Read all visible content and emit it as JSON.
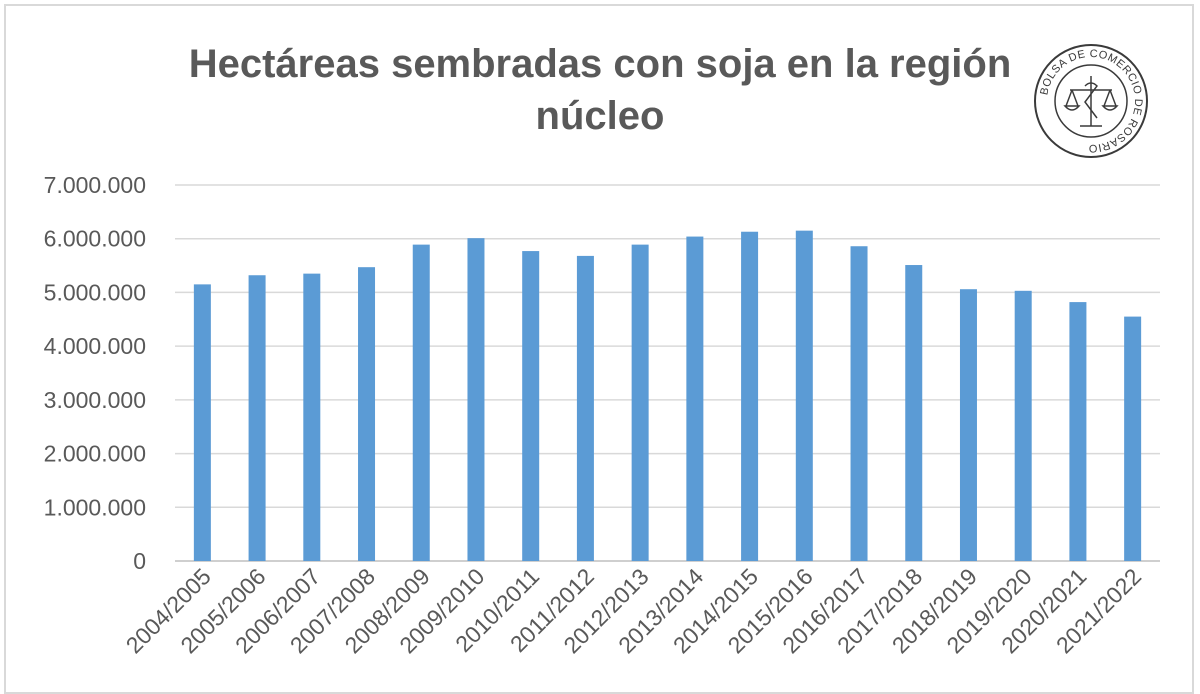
{
  "chart_data": {
    "type": "bar",
    "title": "Hectáreas sembradas con soja en la región núcleo",
    "xlabel": "",
    "ylabel": "",
    "categories": [
      "2004/2005",
      "2005/2006",
      "2006/2007",
      "2007/2008",
      "2008/2009",
      "2009/2010",
      "2010/2011",
      "2011/2012",
      "2012/2013",
      "2013/2014",
      "2014/2015",
      "2015/2016",
      "2016/2017",
      "2017/2018",
      "2018/2019",
      "2019/2020",
      "2020/2021",
      "2021/2022"
    ],
    "values": [
      5150000,
      5320000,
      5350000,
      5470000,
      5890000,
      6010000,
      5770000,
      5680000,
      5890000,
      6040000,
      6130000,
      6150000,
      5860000,
      5510000,
      5060000,
      5030000,
      4820000,
      4550000
    ],
    "ylim": [
      0,
      7000000
    ],
    "yticks": [
      "0",
      "1.000.000",
      "2.000.000",
      "3.000.000",
      "4.000.000",
      "5.000.000",
      "6.000.000",
      "7.000.000"
    ],
    "grid": true,
    "bar_color": "#5b9bd5",
    "grid_color": "#d9d9d9"
  },
  "logo": {
    "text": "BOLSA DE COMERCIO DE ROSARIO"
  }
}
